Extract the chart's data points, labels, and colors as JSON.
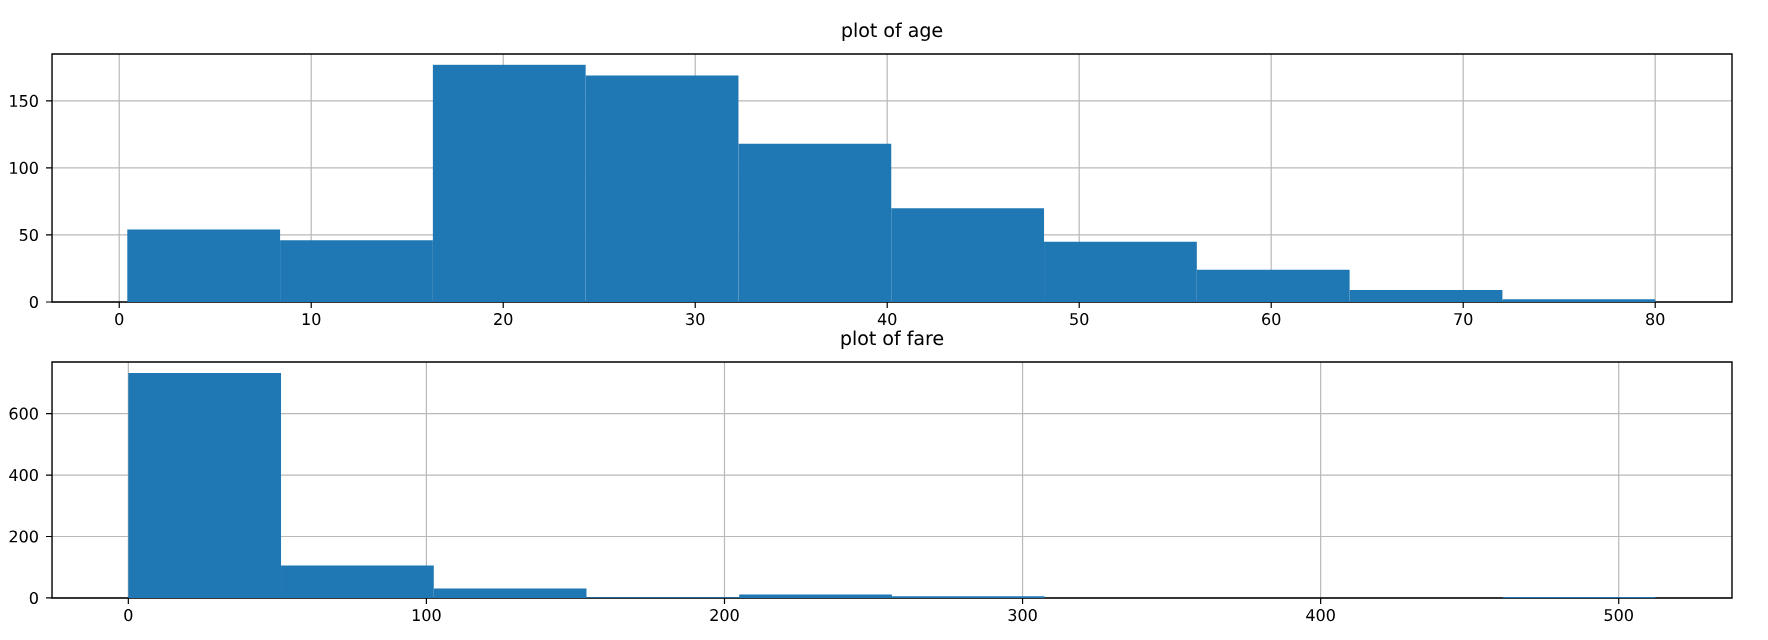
{
  "chart_data": [
    {
      "type": "histogram",
      "title": "plot of age",
      "color": "#1f77b4",
      "grid": true,
      "bins": [
        0.42,
        8.378,
        16.336,
        24.294,
        32.252,
        40.21,
        48.168,
        56.126,
        64.084,
        72.042,
        80
      ],
      "values": [
        54,
        46,
        177,
        169,
        118,
        70,
        45,
        24,
        9,
        2
      ],
      "xlim": [
        -3.5,
        84
      ],
      "ylim": [
        0,
        185
      ],
      "xticks": [
        0,
        10,
        20,
        30,
        40,
        50,
        60,
        70,
        80
      ],
      "yticks": [
        0,
        50,
        100,
        150
      ]
    },
    {
      "type": "histogram",
      "title": "plot of fare",
      "color": "#1f77b4",
      "grid": true,
      "bins": [
        0,
        51.23,
        102.47,
        153.7,
        204.93,
        256.16,
        307.4,
        358.63,
        409.86,
        461.1,
        512.33
      ],
      "values": [
        732,
        106,
        31,
        2,
        11,
        6,
        0,
        0,
        0,
        3
      ],
      "xlim": [
        -25.6,
        538
      ],
      "ylim": [
        0,
        768
      ],
      "xticks": [
        0,
        100,
        200,
        300,
        400,
        500
      ],
      "yticks": [
        0,
        200,
        400,
        600
      ]
    }
  ]
}
